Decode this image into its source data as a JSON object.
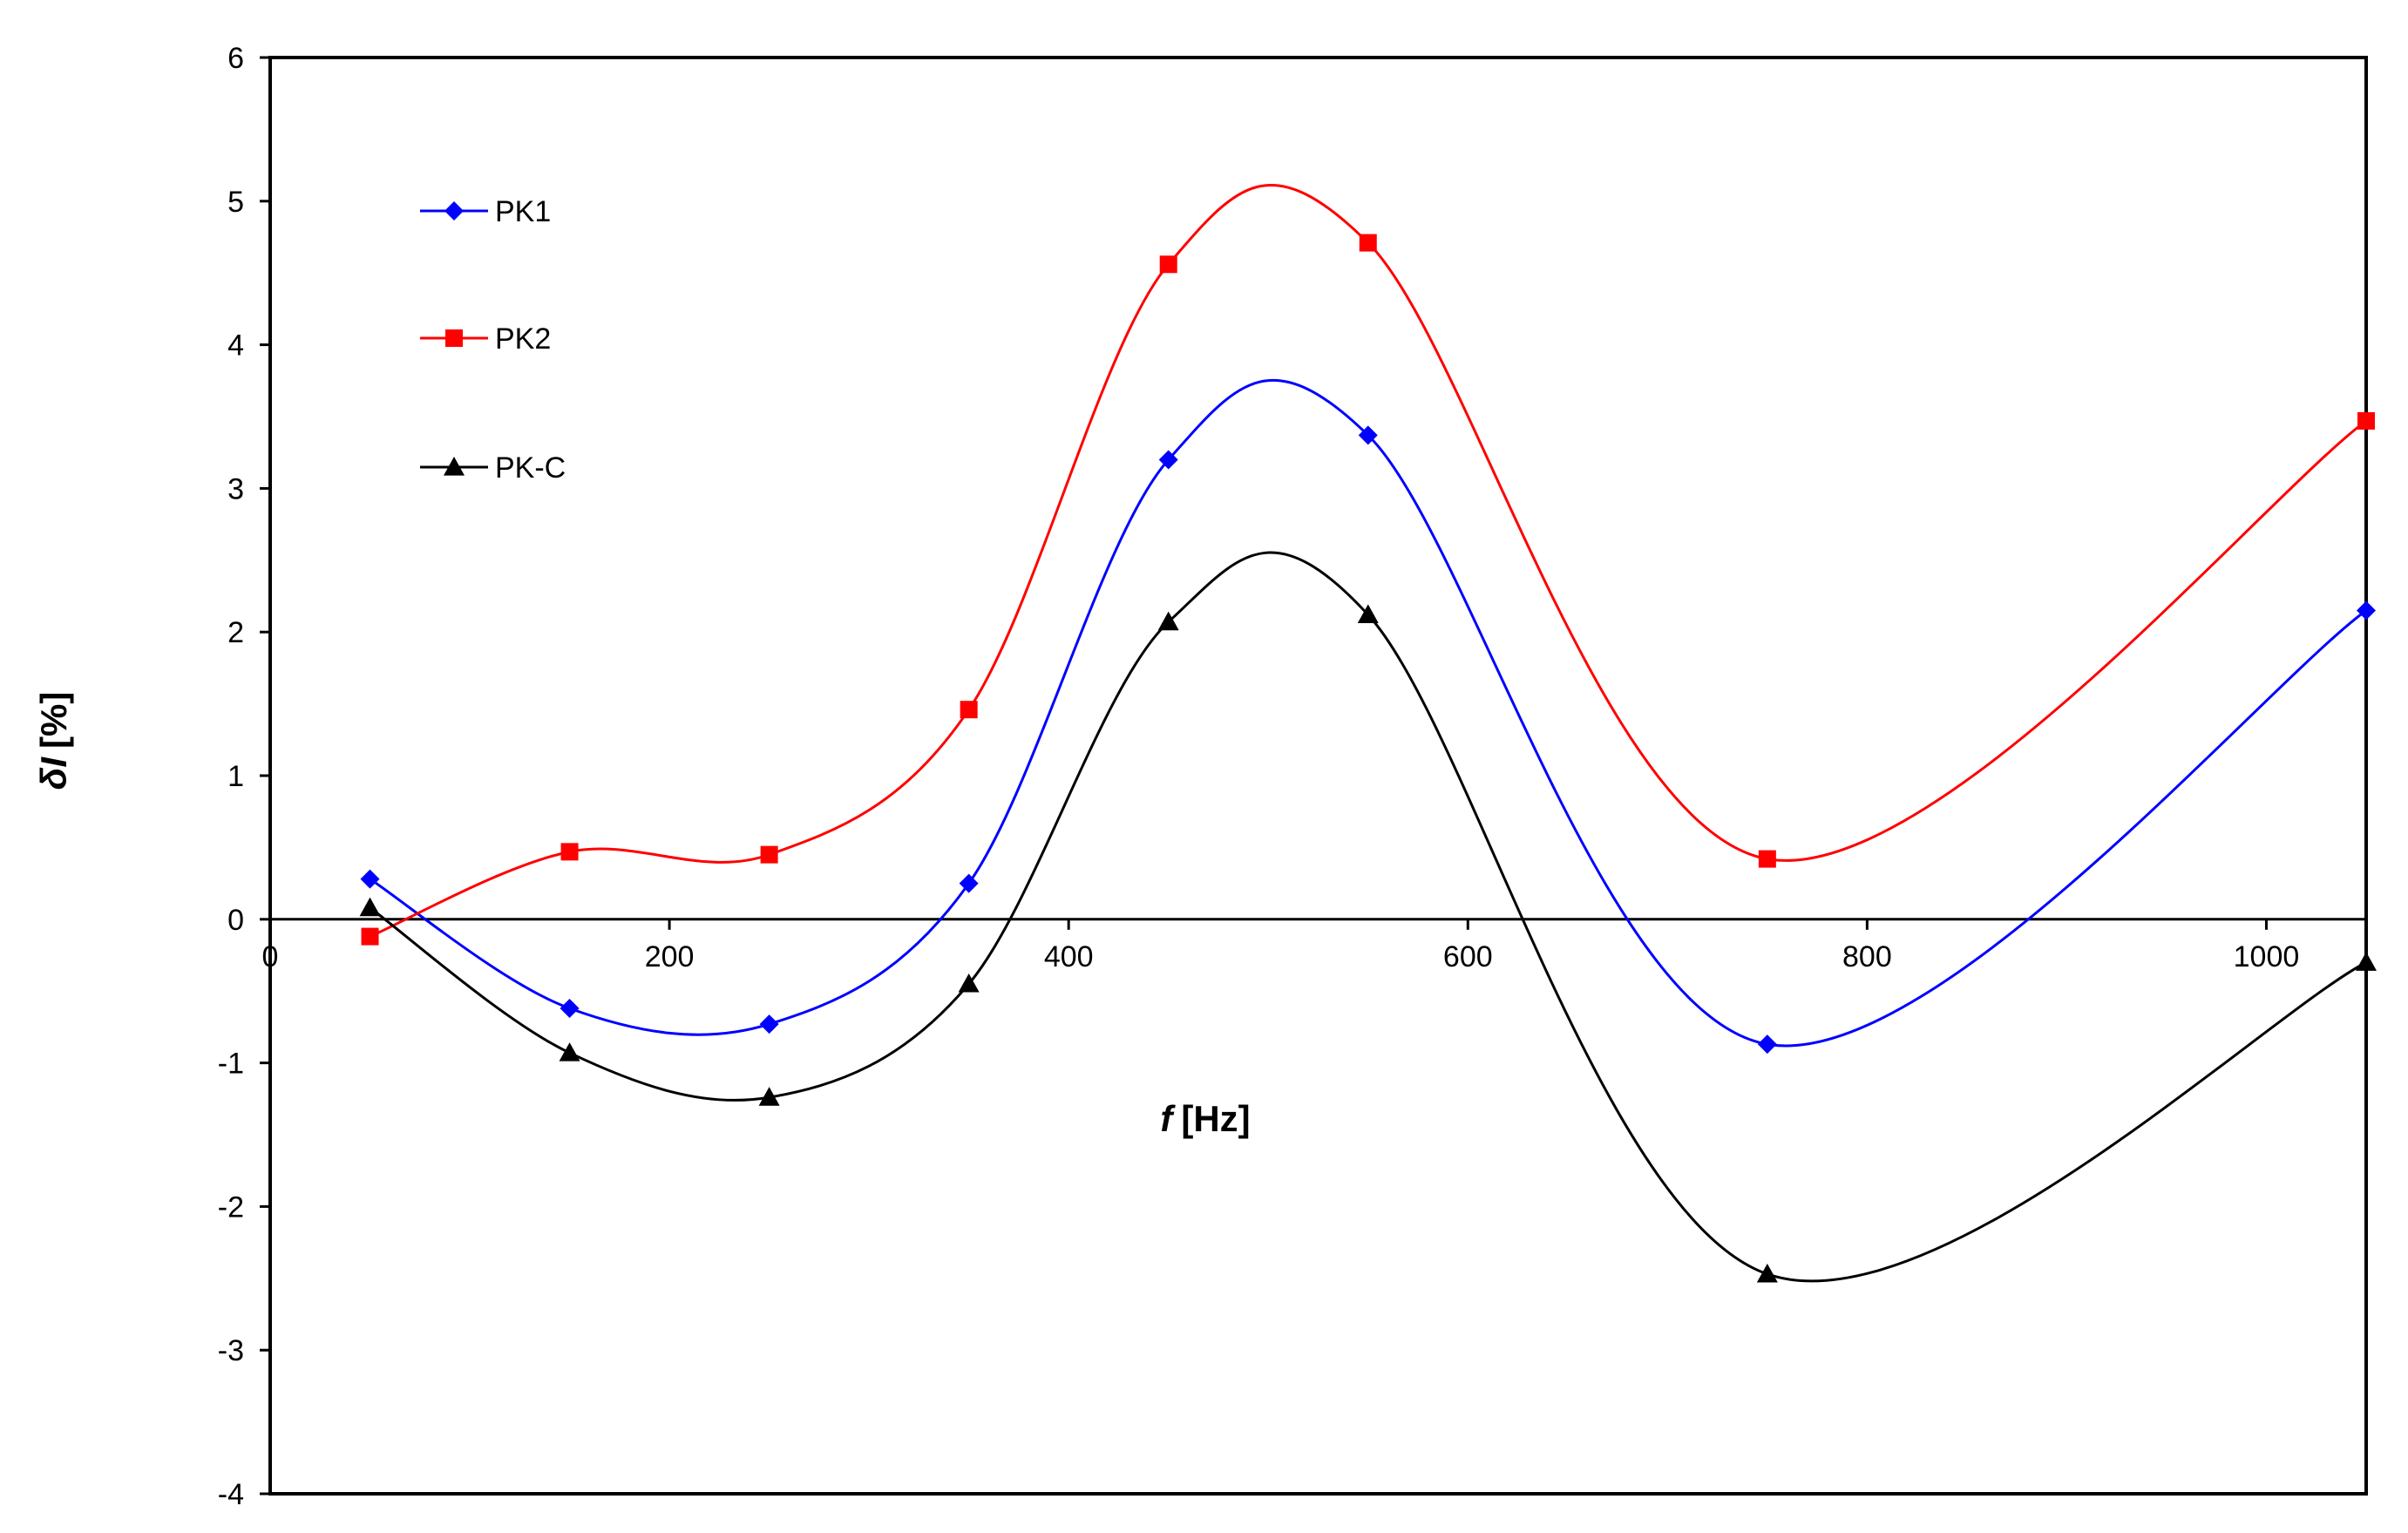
{
  "chart_data": {
    "type": "line",
    "xlabel_symbol": "f",
    "xlabel_unit": "[Hz]",
    "ylabel_symbol": "δI",
    "ylabel_unit": "[%]",
    "xlim": [
      0,
      1050
    ],
    "ylim": [
      -4,
      6
    ],
    "x_ticks": [
      0,
      200,
      400,
      600,
      800,
      1000
    ],
    "y_ticks": [
      -4,
      -3,
      -2,
      -1,
      0,
      1,
      2,
      3,
      4,
      5,
      6
    ],
    "grid": false,
    "legend_position": "top-left",
    "x": [
      50,
      150,
      250,
      350,
      450,
      550,
      750,
      1050
    ],
    "series": [
      {
        "name": "PK1",
        "color": "#0000ff",
        "marker": "diamond",
        "values": [
          0.28,
          -0.62,
          -0.73,
          0.25,
          3.2,
          3.37,
          -0.87,
          2.15
        ]
      },
      {
        "name": "PK2",
        "color": "#ff0000",
        "marker": "square",
        "values": [
          -0.12,
          0.47,
          0.45,
          1.46,
          4.56,
          4.71,
          0.42,
          3.47
        ]
      },
      {
        "name": "PK-C",
        "color": "#000000",
        "marker": "triangle",
        "values": [
          0.08,
          -0.93,
          -1.24,
          -0.45,
          2.07,
          2.12,
          -2.47,
          -0.3
        ]
      }
    ]
  }
}
